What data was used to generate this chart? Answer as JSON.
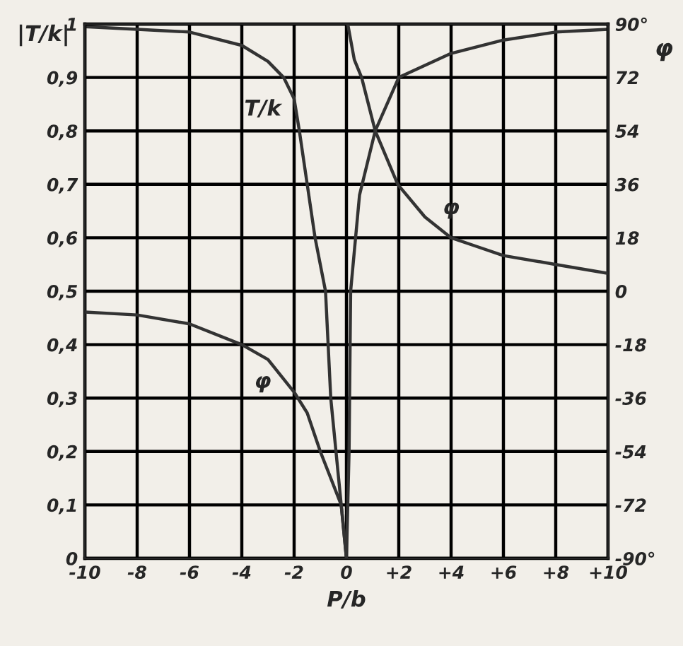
{
  "chart_data": {
    "type": "line",
    "xlabel": "P/b",
    "ylabel": "|T/k|",
    "y2label": "φ",
    "xlim": [
      -10,
      10
    ],
    "xticks": [
      {
        "value": -10,
        "label": "-10"
      },
      {
        "value": -8,
        "label": "-8"
      },
      {
        "value": -6,
        "label": "-6"
      },
      {
        "value": -4,
        "label": "-4"
      },
      {
        "value": -2,
        "label": "-2"
      },
      {
        "value": 0,
        "label": "0"
      },
      {
        "value": 2,
        "label": "+2"
      },
      {
        "value": 4,
        "label": "+4"
      },
      {
        "value": 6,
        "label": "+6"
      },
      {
        "value": 8,
        "label": "+8"
      },
      {
        "value": 10,
        "label": "+10"
      }
    ],
    "ylim": [
      0,
      1
    ],
    "yticks": [
      {
        "value": 0,
        "label": "0"
      },
      {
        "value": 0.1,
        "label": "0,1"
      },
      {
        "value": 0.2,
        "label": "0,2"
      },
      {
        "value": 0.3,
        "label": "0,3"
      },
      {
        "value": 0.4,
        "label": "0,4"
      },
      {
        "value": 0.5,
        "label": "0,5"
      },
      {
        "value": 0.6,
        "label": "0,6"
      },
      {
        "value": 0.7,
        "label": "0,7"
      },
      {
        "value": 0.8,
        "label": "0,8"
      },
      {
        "value": 0.9,
        "label": "0,9"
      },
      {
        "value": 1,
        "label": "1"
      }
    ],
    "y2lim": [
      -90,
      90
    ],
    "y2ticks": [
      {
        "value": -90,
        "label": "-90°"
      },
      -72,
      -54,
      -36,
      -18,
      0,
      18,
      36,
      54,
      72,
      {
        "value": 90,
        "label": "90°"
      }
    ],
    "grid": true,
    "legend": false,
    "marker": "none",
    "line_style": "solid",
    "series": [
      {
        "color": "#333333",
        "x": [
          -10,
          -8,
          -6,
          -4,
          -3,
          -2.4,
          -2,
          -1.8,
          -1.5,
          -1.2,
          -0.8,
          -0.6,
          -0.3,
          0
        ],
        "values": [
          0.995,
          0.99,
          0.985,
          0.96,
          0.93,
          0.9,
          0.86,
          0.8,
          0.7,
          0.6,
          0.5,
          0.3,
          0.15,
          0
        ]
      },
      {
        "color": "#333333",
        "x": [
          0,
          0.1,
          0.16,
          0.5,
          1.1,
          2,
          4,
          6,
          8,
          10
        ],
        "values": [
          0,
          0.2,
          0.5,
          0.68,
          0.8,
          0.9,
          0.945,
          0.97,
          0.985,
          0.99
        ]
      },
      {
        "color": "#333333",
        "axis": "y2",
        "x": [
          -10,
          -8,
          -6,
          -4,
          -3,
          -2,
          -1.5,
          -1,
          -0.2,
          0
        ],
        "values": [
          -7,
          -8,
          -11,
          -18,
          -23,
          -34,
          -41,
          -54,
          -72,
          -90
        ]
      },
      {
        "color": "#333333",
        "axis": "y2",
        "x": [
          0.05,
          0.3,
          0.58,
          1.1,
          1.96,
          3,
          4,
          5,
          6,
          8,
          10
        ],
        "values": [
          90,
          78,
          72,
          54,
          36,
          25,
          18,
          15,
          12,
          9,
          6
        ]
      }
    ],
    "annotations": [
      "T/k",
      "φ",
      "φ"
    ]
  }
}
